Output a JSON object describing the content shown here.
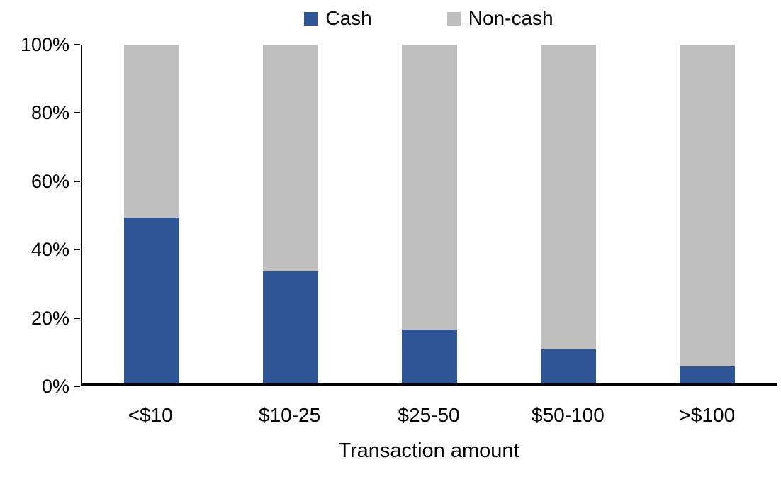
{
  "chart_data": {
    "type": "bar",
    "variant": "stacked-100-percent-column",
    "title": "",
    "xlabel": "Transaction amount",
    "ylabel": "",
    "categories": [
      "<$10",
      "$10-25",
      "$25-50",
      "$50-100",
      ">$100"
    ],
    "series": [
      {
        "name": "Cash",
        "color": "#2F5597",
        "values": [
          49,
          33,
          16,
          10,
          5
        ]
      },
      {
        "name": "Non-cash",
        "color": "#BFBFBF",
        "values": [
          51,
          67,
          84,
          90,
          95
        ]
      }
    ],
    "ylim": [
      0,
      100
    ],
    "yticks": [
      0,
      20,
      40,
      60,
      80,
      100
    ],
    "ytick_labels": [
      "0%",
      "20%",
      "40%",
      "60%",
      "80%",
      "100%"
    ],
    "grid": false,
    "legend_position": "top-center",
    "axis_color": "#000000",
    "text_color": "#000000",
    "background_color": "#FFFFFF"
  }
}
